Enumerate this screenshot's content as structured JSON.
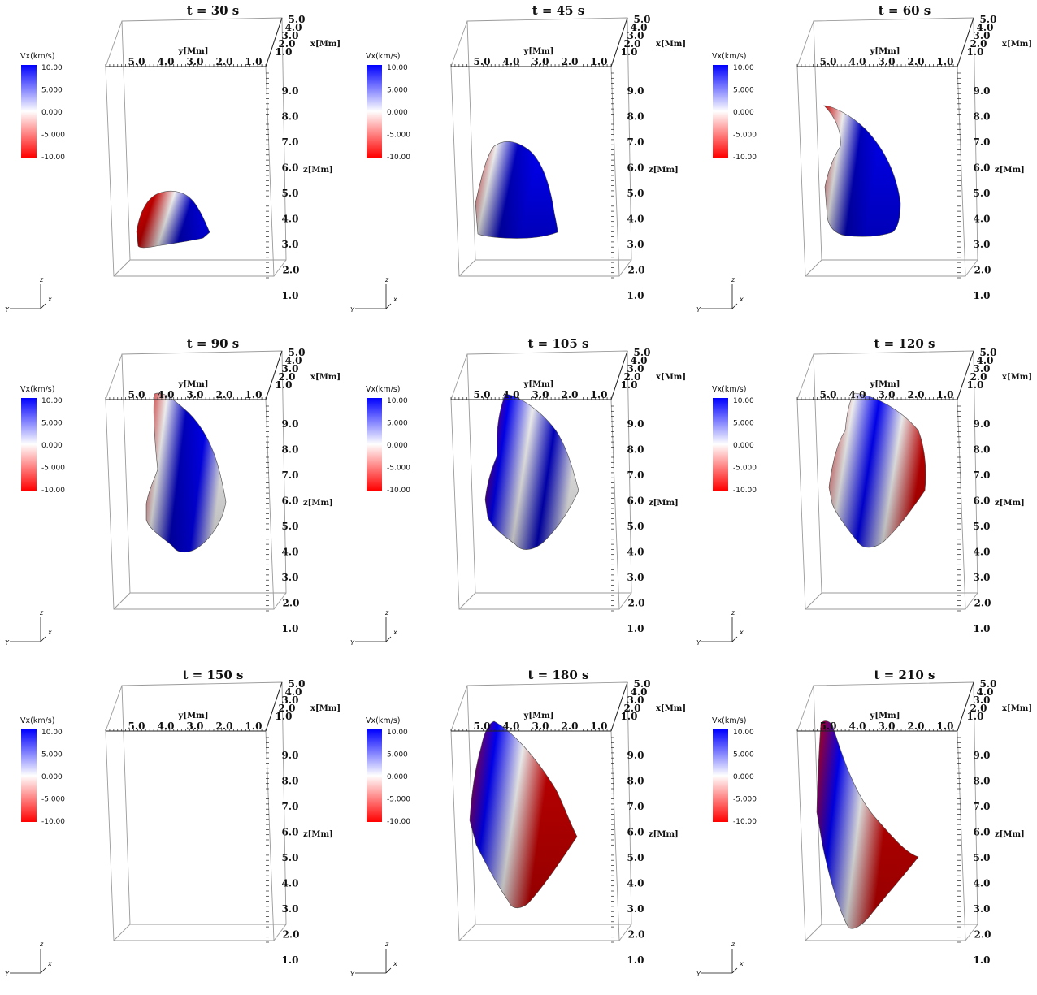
{
  "colorbar": {
    "title": "Vx(km/s)",
    "ticks": [
      "10.00",
      "5.000",
      "0.000",
      "-5.000",
      "-10.00"
    ],
    "colors": {
      "max": "#0000ff",
      "mid": "#ffffff",
      "min": "#ff0000"
    }
  },
  "axes": {
    "y_label": "y[Mm]",
    "x_label": "x[Mm]",
    "z_label": "z[Mm]",
    "y_ticks": [
      "5.0",
      "4.0",
      "3.0",
      "2.0",
      "1.0"
    ],
    "x_ticks": [
      "5.0",
      "4.0",
      "3.0",
      "2.0",
      "1.0"
    ],
    "z_ticks": [
      "9.0",
      "8.0",
      "7.0",
      "6.0",
      "5.0",
      "4.0",
      "3.0",
      "2.0",
      "1.0"
    ]
  },
  "triad": {
    "z": "z",
    "x": "x",
    "y": "Y"
  },
  "panels": [
    {
      "title": "t = 30 s",
      "shape": "hump"
    },
    {
      "title": "t = 45 s",
      "shape": "horn"
    },
    {
      "title": "t = 60 s",
      "shape": "horn-tall"
    },
    {
      "title": "t = 90 s",
      "shape": "sheet-blue"
    },
    {
      "title": "t = 105 s",
      "shape": "sheet-mixed"
    },
    {
      "title": "t = 120 s",
      "shape": "sheet-red"
    },
    {
      "title": "t = 150 s",
      "shape": "sheet-red"
    },
    {
      "title": "t = 180 s",
      "shape": "sheet-diag"
    },
    {
      "title": "t = 210 s",
      "shape": "sheet-narrow"
    }
  ]
}
